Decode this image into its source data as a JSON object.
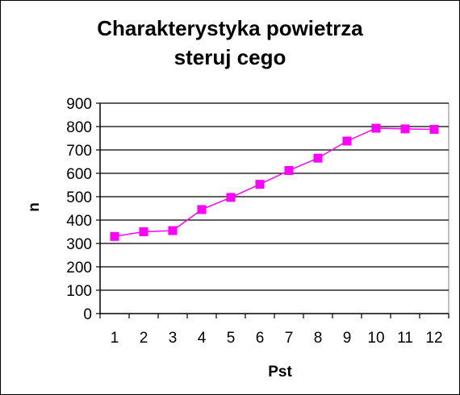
{
  "chart_data": {
    "type": "line",
    "title_line1": "Charakterystyka powietrza",
    "title_line2": "steruj  cego",
    "xlabel": "Pst",
    "ylabel": "n",
    "categories": [
      "1",
      "2",
      "3",
      "4",
      "5",
      "6",
      "7",
      "8",
      "9",
      "10",
      "11",
      "12"
    ],
    "series": [
      {
        "values": [
          330,
          350,
          355,
          445,
          497,
          553,
          612,
          665,
          738,
          793,
          790,
          788
        ]
      }
    ],
    "ylim": [
      0,
      900
    ],
    "yticks": [
      "0",
      "100",
      "200",
      "300",
      "400",
      "500",
      "600",
      "700",
      "800",
      "900"
    ],
    "grid": true,
    "legend": "none",
    "colors": {
      "series": "#ff00ff",
      "axis": "#000000",
      "grid": "#000000",
      "plot_border": "#808080"
    }
  }
}
